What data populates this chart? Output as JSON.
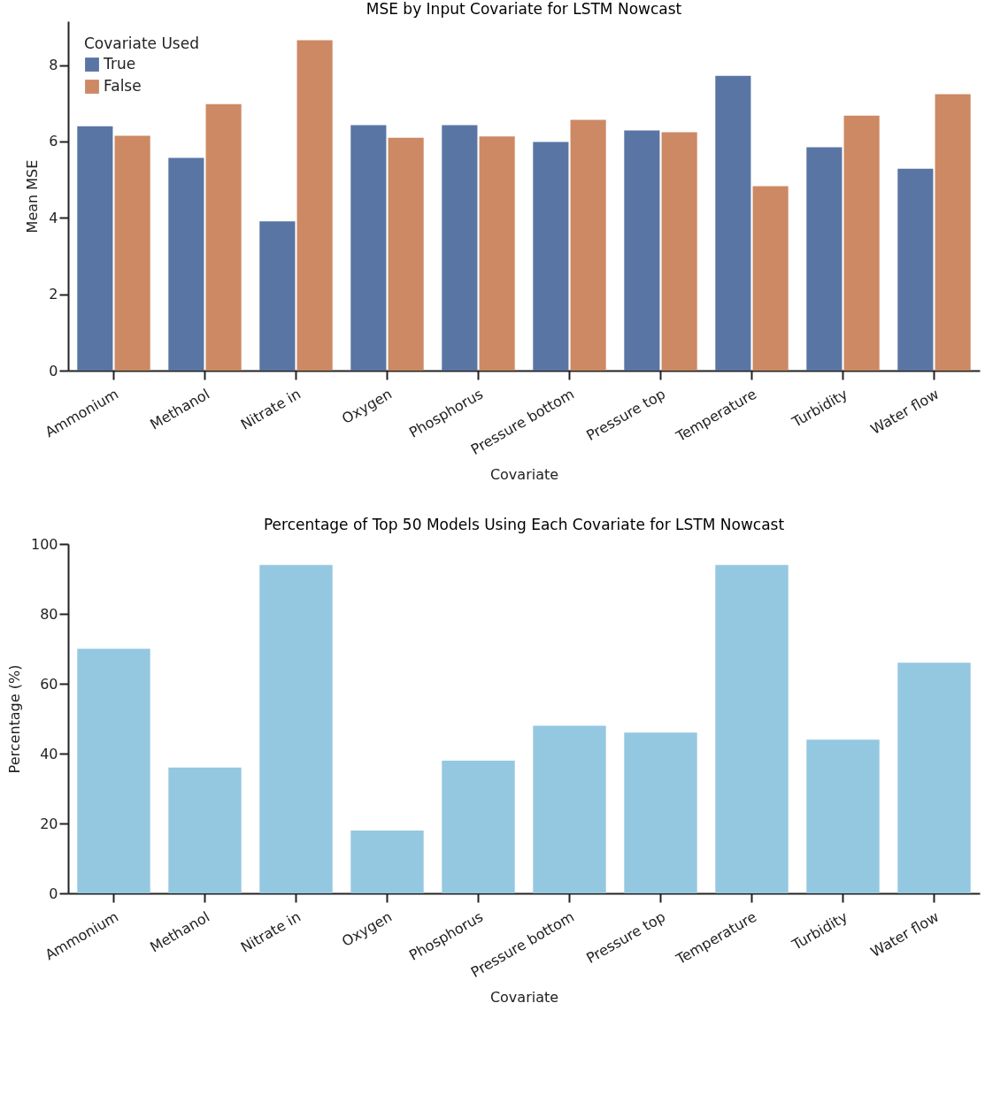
{
  "chart_data": [
    {
      "type": "bar",
      "title": "MSE by Input Covariate for LSTM Nowcast",
      "xlabel": "Covariate",
      "ylabel": "Mean MSE",
      "legend_title": "Covariate Used",
      "legend": "top left",
      "grid": false,
      "categories": [
        "Ammonium",
        "Methanol",
        "Nitrate in",
        "Oxygen",
        "Phosphorus",
        "Pressure bottom",
        "Pressure top",
        "Temperature",
        "Turbidity",
        "Water flow"
      ],
      "series": [
        {
          "name": "True",
          "color": "#5975a4",
          "values": [
            6.4,
            5.57,
            3.91,
            6.43,
            6.43,
            5.99,
            6.29,
            7.72,
            5.85,
            5.29
          ]
        },
        {
          "name": "False",
          "color": "#cc8963",
          "values": [
            6.15,
            6.98,
            8.65,
            6.1,
            6.13,
            6.57,
            6.24,
            4.83,
            6.68,
            7.24
          ]
        }
      ],
      "ylim": [
        0,
        9.15
      ],
      "yticks": [
        0,
        2,
        4,
        6,
        8
      ]
    },
    {
      "type": "bar",
      "title": "Percentage of Top 50 Models Using Each Covariate for LSTM Nowcast",
      "xlabel": "Covariate",
      "ylabel": "Percentage (%)",
      "grid": false,
      "categories": [
        "Ammonium",
        "Methanol",
        "Nitrate in",
        "Oxygen",
        "Phosphorus",
        "Pressure bottom",
        "Pressure top",
        "Temperature",
        "Turbidity",
        "Water flow"
      ],
      "series": [
        {
          "color": "#94c8e0",
          "values": [
            70,
            36,
            94,
            18,
            38,
            48,
            46,
            94,
            44,
            66
          ]
        }
      ],
      "ylim": [
        0,
        100
      ],
      "yticks": [
        0,
        20,
        40,
        60,
        80,
        100
      ]
    }
  ]
}
